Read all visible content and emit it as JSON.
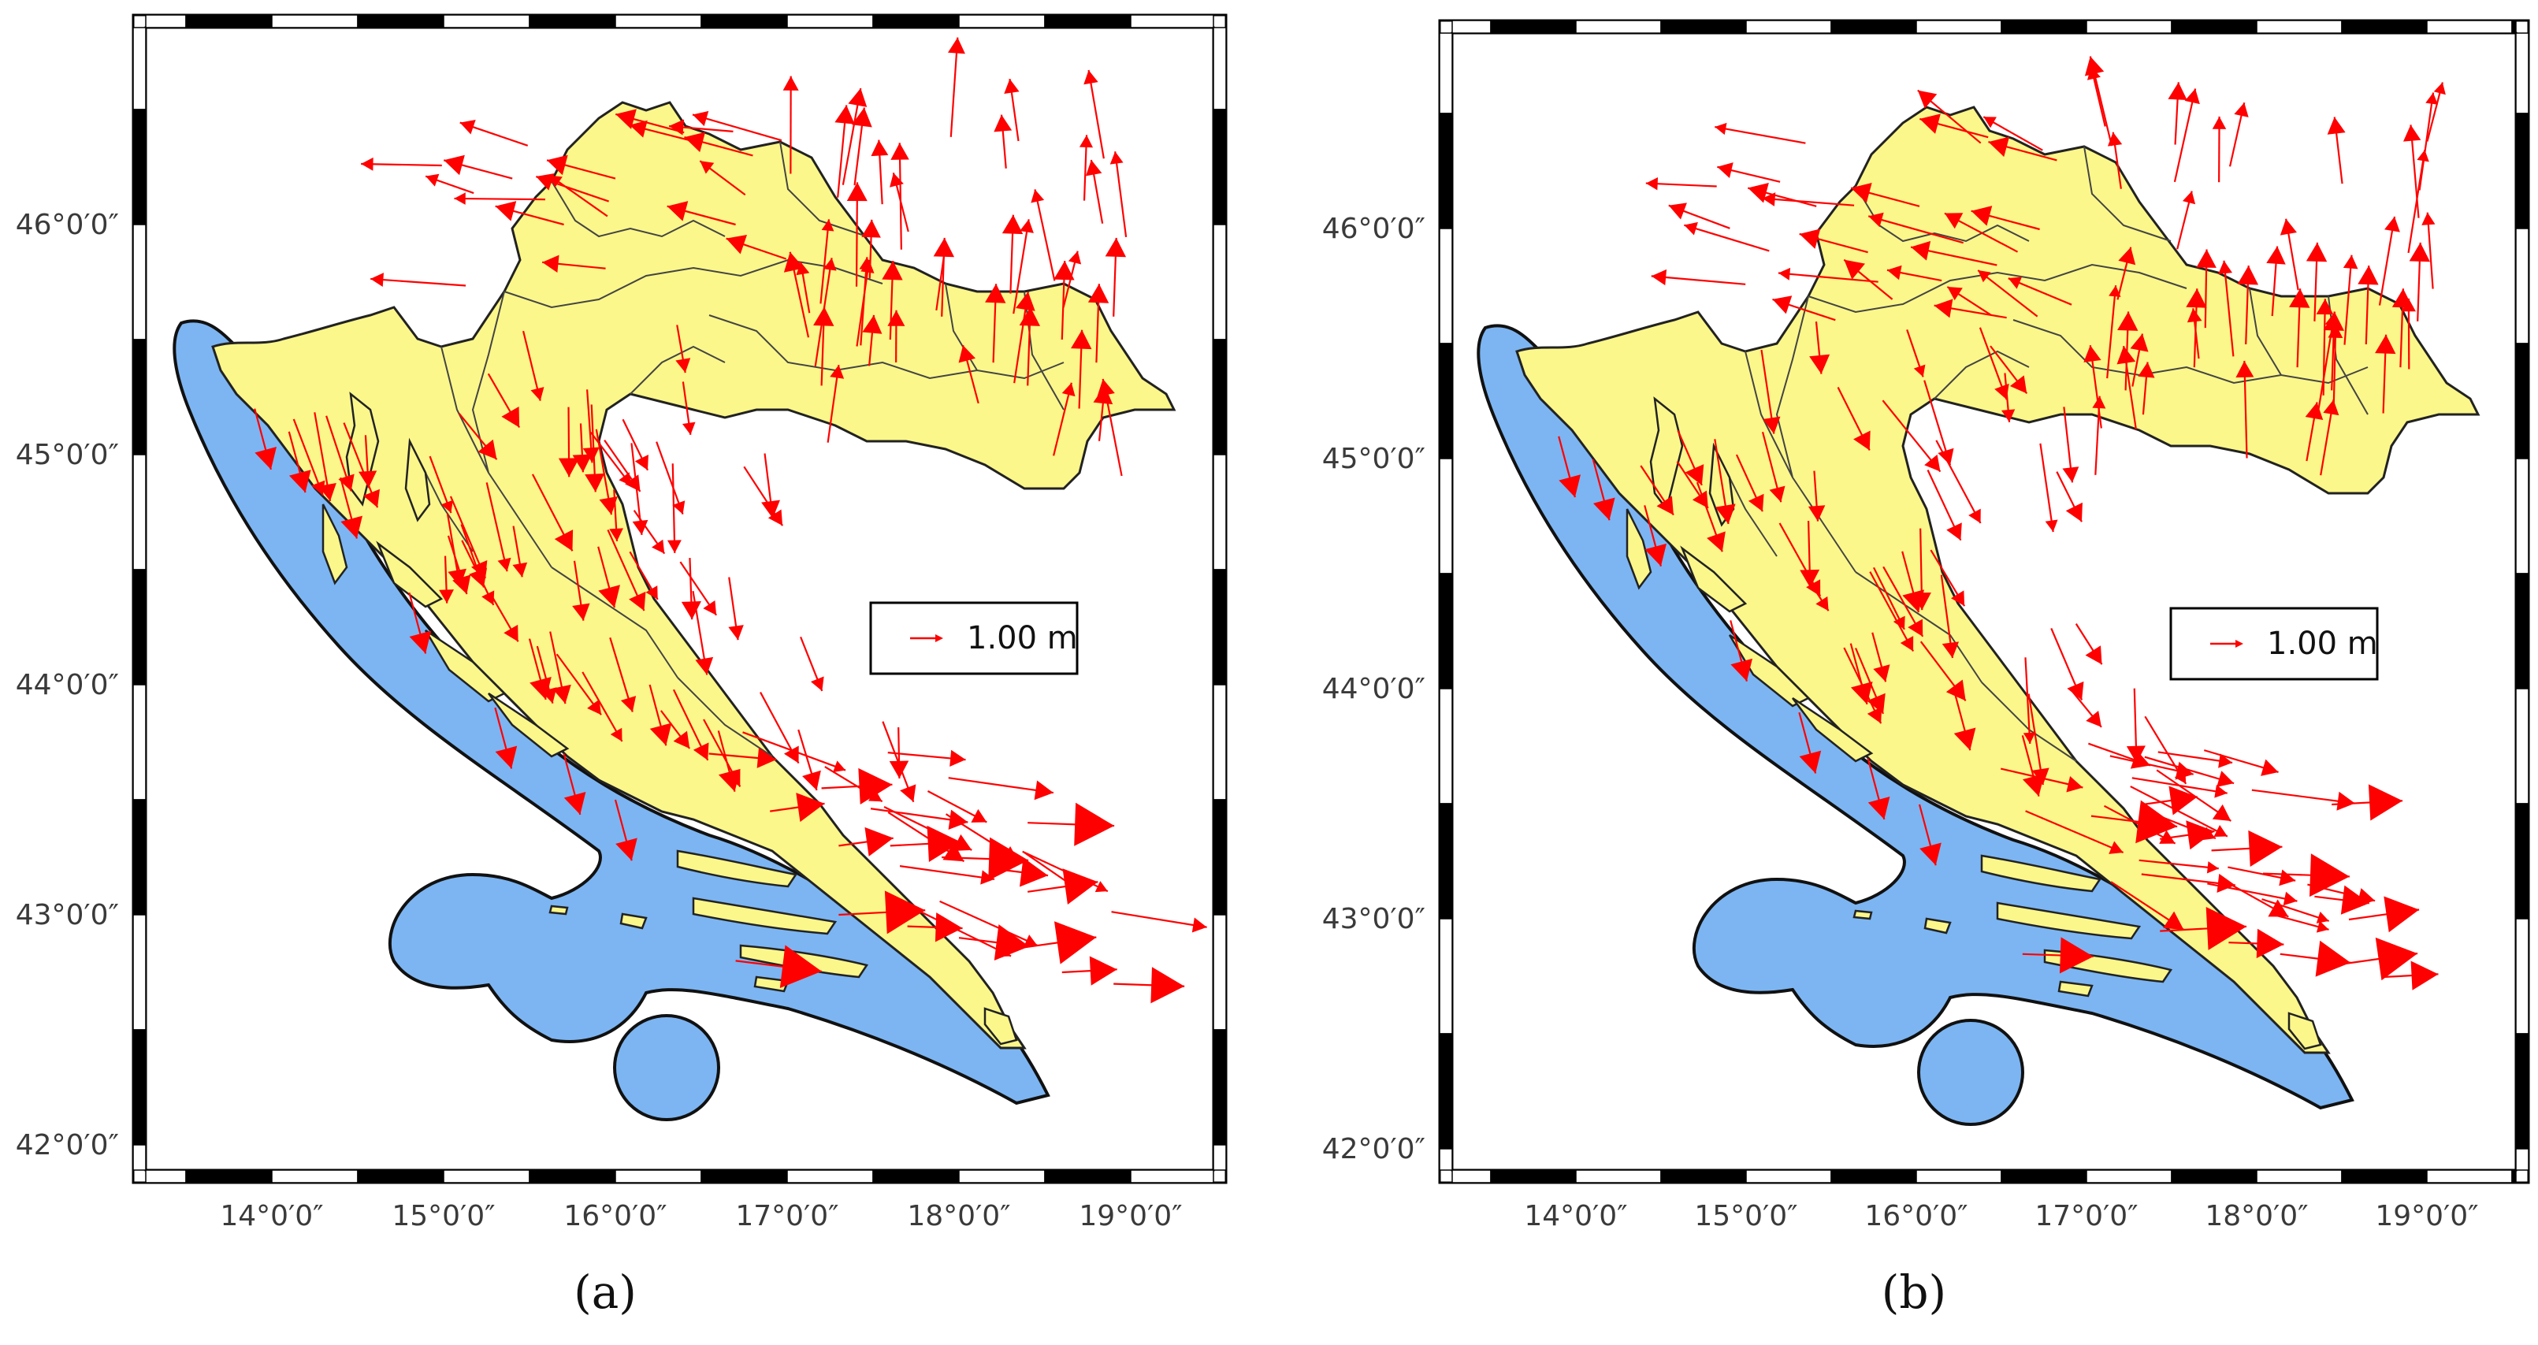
{
  "figure": {
    "colors": {
      "sea": "#7cb5f2",
      "land": "#fbf78a",
      "vector": "#ff0000",
      "frame_dark": "#000000",
      "frame_light": "#ffffff"
    },
    "longitude_ticks": [
      "14°0′0″",
      "15°0′0″",
      "16°0′0″",
      "17°0′0″",
      "18°0′0″",
      "19°0′0″"
    ],
    "latitude_ticks": [
      "46°0′0″",
      "45°0′0″",
      "44°0′0″",
      "43°0′0″",
      "42°0′0″"
    ],
    "panels": [
      {
        "caption": "(a)",
        "legend_label": "1.00 m",
        "east_vectors": [
          [
            43.3,
            17.3
          ],
          [
            43.3,
            17.6
          ],
          [
            43.25,
            17.9
          ],
          [
            43.2,
            18.2
          ],
          [
            43.1,
            18.4
          ],
          [
            43.0,
            17.3
          ],
          [
            42.95,
            17.7
          ],
          [
            42.9,
            18.0
          ],
          [
            42.85,
            18.3
          ],
          [
            42.75,
            18.6
          ],
          [
            42.7,
            18.9
          ],
          [
            42.8,
            16.7
          ],
          [
            43.45,
            16.9
          ],
          [
            43.55,
            17.2
          ],
          [
            43.4,
            18.4
          ]
        ],
        "south_vectors": [
          [
            45.2,
            13.9
          ],
          [
            45.1,
            14.1
          ],
          [
            44.9,
            14.4
          ],
          [
            44.4,
            14.8
          ],
          [
            43.9,
            15.3
          ],
          [
            43.7,
            15.7
          ],
          [
            43.5,
            16.0
          ],
          [
            44.2,
            15.5
          ],
          [
            44.6,
            15.9
          ],
          [
            44.0,
            16.2
          ],
          [
            43.8,
            16.6
          ]
        ],
        "north_vectors": [
          [
            45.4,
            18.2
          ],
          [
            45.3,
            18.4
          ],
          [
            45.5,
            18.6
          ],
          [
            45.4,
            18.8
          ],
          [
            45.6,
            18.9
          ],
          [
            45.7,
            18.3
          ],
          [
            45.6,
            17.9
          ],
          [
            45.5,
            17.6
          ],
          [
            45.3,
            17.2
          ],
          [
            45.2,
            18.7
          ]
        ],
        "west_vectors": [
          [
            46.4,
            16.4
          ],
          [
            46.2,
            16.0
          ],
          [
            46.0,
            15.7
          ],
          [
            46.2,
            15.4
          ],
          [
            46.0,
            16.7
          ],
          [
            46.3,
            16.8
          ]
        ]
      },
      {
        "caption": "(b)",
        "legend_label": "1.00 m",
        "east_vectors": [
          [
            43.35,
            17.4
          ],
          [
            43.3,
            17.7
          ],
          [
            43.2,
            18.0
          ],
          [
            43.1,
            18.3
          ],
          [
            43.0,
            18.5
          ],
          [
            42.95,
            17.4
          ],
          [
            42.9,
            17.8
          ],
          [
            42.85,
            18.1
          ],
          [
            42.8,
            18.4
          ],
          [
            42.75,
            18.7
          ],
          [
            42.85,
            16.6
          ],
          [
            43.45,
            17.0
          ],
          [
            43.5,
            17.3
          ],
          [
            43.5,
            18.4
          ]
        ],
        "south_vectors": [
          [
            45.1,
            13.9
          ],
          [
            45.0,
            14.1
          ],
          [
            44.8,
            14.4
          ],
          [
            44.3,
            14.9
          ],
          [
            43.9,
            15.3
          ],
          [
            43.7,
            15.7
          ],
          [
            43.5,
            16.0
          ],
          [
            44.2,
            15.6
          ],
          [
            44.6,
            15.9
          ],
          [
            44.0,
            16.2
          ],
          [
            43.8,
            16.6
          ]
        ],
        "north_vectors": [
          [
            45.4,
            18.2
          ],
          [
            45.3,
            18.4
          ],
          [
            45.5,
            18.6
          ],
          [
            45.4,
            18.8
          ],
          [
            45.6,
            18.9
          ],
          [
            45.6,
            18.3
          ],
          [
            45.5,
            17.9
          ],
          [
            45.4,
            17.6
          ],
          [
            45.3,
            17.2
          ],
          [
            45.2,
            18.7
          ]
        ],
        "west_vectors": [
          [
            46.4,
            16.4
          ],
          [
            46.1,
            16.0
          ],
          [
            45.9,
            15.7
          ],
          [
            46.1,
            15.4
          ],
          [
            46.0,
            16.7
          ],
          [
            46.3,
            16.8
          ]
        ]
      }
    ]
  }
}
